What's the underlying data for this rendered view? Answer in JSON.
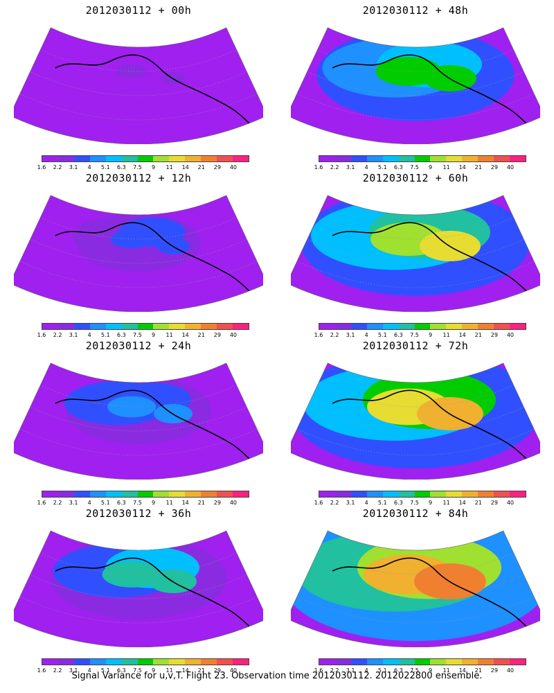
{
  "panels": [
    {
      "title": "2012030112 + 00h",
      "intensity": 0.05
    },
    {
      "title": "2012030112 + 48h",
      "intensity": 0.55
    },
    {
      "title": "2012030112 + 12h",
      "intensity": 0.2
    },
    {
      "title": "2012030112 + 60h",
      "intensity": 0.7
    },
    {
      "title": "2012030112 + 24h",
      "intensity": 0.3
    },
    {
      "title": "2012030112 + 72h",
      "intensity": 0.8
    },
    {
      "title": "2012030112 + 36h",
      "intensity": 0.45
    },
    {
      "title": "2012030112 + 84h",
      "intensity": 0.9
    }
  ],
  "colorbar": {
    "labels": [
      "1.6",
      "2.2",
      "3.1",
      "4",
      "5.1",
      "6.3",
      "7.5",
      "9",
      "11",
      "14",
      "21",
      "29",
      "40"
    ],
    "colors": [
      "#a020f0",
      "#8a2be2",
      "#3050ff",
      "#1e90ff",
      "#00bfff",
      "#20c0a0",
      "#00cc00",
      "#a0e030",
      "#e6dc32",
      "#f0b030",
      "#f08030",
      "#f05050",
      "#ff2080"
    ]
  },
  "footer": "Signal Variance for u,v,T. Flight 23. Observation time 2012030112. 2012022800 ensemble."
}
